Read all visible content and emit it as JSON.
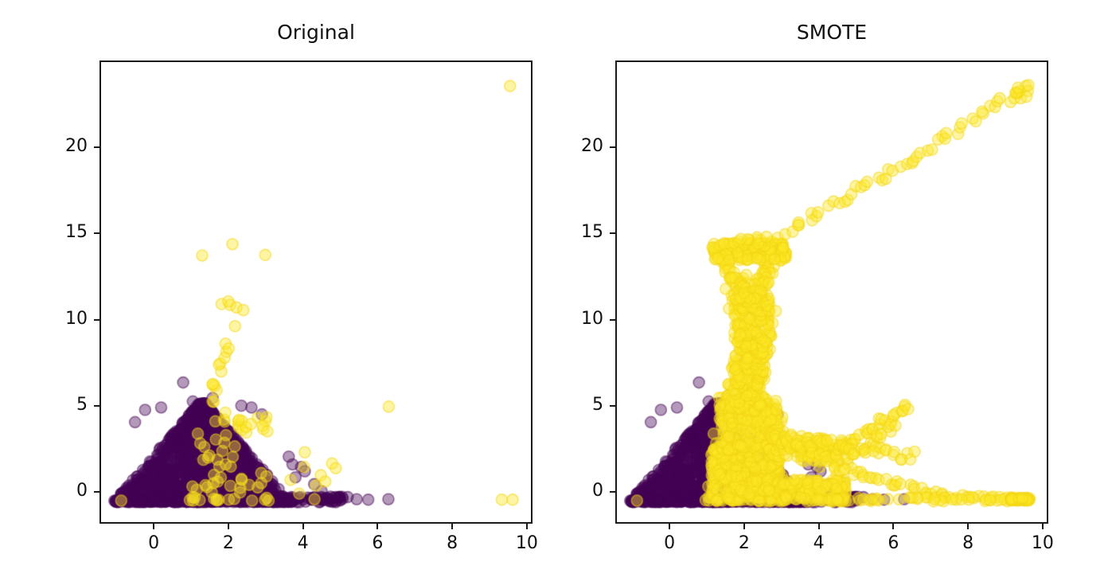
{
  "figure": {
    "background": "#ffffff"
  },
  "palette": {
    "majority_color": "#440154",
    "minority_color": "#fde725",
    "minority_stroke": "#f3d512",
    "majority_fill_alpha": 0.4,
    "majority_stroke_alpha": 0.5,
    "minority_fill_alpha": 0.42,
    "minority_stroke_alpha": 0.55,
    "axis_color": "#1a1a1a",
    "text_color": "#111111"
  },
  "chart_data": [
    {
      "type": "scatter",
      "title": "Original",
      "xlabel": "",
      "ylabel": "",
      "xlim": [
        -1.41,
        10.11
      ],
      "ylim": [
        -1.75,
        24.94
      ],
      "xticks": [
        0,
        2,
        4,
        6,
        8,
        10
      ],
      "yticks": [
        0,
        5,
        10,
        15,
        20
      ],
      "grid": false,
      "legend": "none",
      "marker": {
        "radius_px": 7
      },
      "series": [
        {
          "name": "majority-class-purple",
          "color": "#440154",
          "clusters": [
            {
              "kind": "triangle",
              "n": 1600,
              "cx": 1.3,
              "halfBase": 2.3,
              "yBase": -0.58,
              "yPeak": 5.15,
              "bias": 2.0,
              "seed": 11
            },
            {
              "kind": "box",
              "n": 60,
              "x": [
                3.35,
                5.1
              ],
              "y": [
                -0.6,
                -0.27
              ],
              "seed": 12
            },
            {
              "kind": "points",
              "pts": [
                [
                  -0.23,
                  4.76
                ],
                [
                  0.79,
                  6.35
                ],
                [
                  1.58,
                  5.45
                ],
                [
                  2.62,
                  4.9
                ],
                [
                  2.9,
                  4.5
                ],
                [
                  3.95,
                  1.45
                ],
                [
                  4.05,
                  1.2
                ],
                [
                  4.3,
                  0.45
                ],
                [
                  4.5,
                  0.05
                ],
                [
                  3.8,
                  0.85
                ],
                [
                  3.72,
                  1.6
                ],
                [
                  3.62,
                  2.05
                ],
                [
                  2.35,
                  5.0
                ],
                [
                  0.2,
                  4.9
                ],
                [
                  -0.5,
                  4.05
                ],
                [
                  1.05,
                  5.25
                ],
                [
                  4.67,
                  -0.42
                ],
                [
                  5.0,
                  -0.45
                ],
                [
                  5.2,
                  -0.3
                ],
                [
                  5.44,
                  -0.42
                ],
                [
                  5.75,
                  -0.45
                ],
                [
                  6.29,
                  -0.42
                ]
              ]
            }
          ]
        },
        {
          "name": "minority-class-yellow",
          "color": "#fde725",
          "clusters": [
            {
              "kind": "points",
              "pts": [
                [
                  -0.87,
                  -0.5
                ],
                [
                  1.82,
                  10.9
                ],
                [
                  2.05,
                  10.85
                ],
                [
                  2.22,
                  10.7
                ],
                [
                  2.4,
                  10.55
                ],
                [
                  2.0,
                  11.05
                ],
                [
                  2.18,
                  9.62
                ],
                [
                  1.3,
                  13.72
                ],
                [
                  2.11,
                  14.38
                ],
                [
                  2.99,
                  13.75
                ],
                [
                  3.67,
                  0.7
                ],
                [
                  4.05,
                  2.3
                ],
                [
                  4.03,
                  1.45
                ],
                [
                  4.78,
                  1.65
                ],
                [
                  4.88,
                  1.38
                ],
                [
                  4.48,
                  0.97
                ],
                [
                  4.35,
                  0.37
                ],
                [
                  4.31,
                  -0.42
                ],
                [
                  4.6,
                  0.6
                ],
                [
                  3.9,
                  -0.1
                ],
                [
                  6.3,
                  4.95
                ],
                [
                  9.33,
                  -0.45
                ],
                [
                  9.62,
                  -0.45
                ],
                [
                  9.55,
                  23.55
                ]
              ]
            },
            {
              "kind": "box",
              "n": 40,
              "x": [
                1.0,
                3.05
              ],
              "y": [
                -0.5,
                4.35
              ],
              "seed": 21
            },
            {
              "kind": "blob",
              "n": 7,
              "cx": 2.2,
              "cy": 3.85,
              "rx": 0.2,
              "ry": 0.4,
              "seed": 22
            },
            {
              "kind": "line",
              "n": 10,
              "from": [
                1.5,
                0.2
              ],
              "to": [
                1.85,
                4.6
              ],
              "jitter": 0.17,
              "seed": 23
            },
            {
              "kind": "box",
              "n": 12,
              "x": [
                0.9,
                3.1
              ],
              "y": [
                -0.52,
                -0.38
              ],
              "seed": 24
            },
            {
              "kind": "line",
              "n": 13,
              "from": [
                1.5,
                5.2
              ],
              "to": [
                1.95,
                8.7
              ],
              "jitter": 0.14,
              "seed": 25
            }
          ]
        }
      ]
    },
    {
      "type": "scatter",
      "title": "SMOTE",
      "xlabel": "",
      "ylabel": "",
      "xlim": [
        -1.41,
        10.11
      ],
      "ylim": [
        -1.75,
        24.94
      ],
      "xticks": [
        0,
        2,
        4,
        6,
        8,
        10
      ],
      "yticks": [
        0,
        5,
        10,
        15,
        20
      ],
      "grid": false,
      "legend": "none",
      "marker": {
        "radius_px": 7
      },
      "series": [
        {
          "name": "majority-class-purple",
          "color": "#440154",
          "clusters": [
            {
              "kind": "triangle",
              "n": 1600,
              "cx": 1.3,
              "halfBase": 2.3,
              "yBase": -0.58,
              "yPeak": 5.15,
              "bias": 2.0,
              "seed": 11
            },
            {
              "kind": "box",
              "n": 60,
              "x": [
                3.35,
                5.1
              ],
              "y": [
                -0.6,
                -0.27
              ],
              "seed": 12
            },
            {
              "kind": "points",
              "pts": [
                [
                  -0.23,
                  4.76
                ],
                [
                  0.79,
                  6.35
                ],
                [
                  1.58,
                  5.45
                ],
                [
                  2.62,
                  4.9
                ],
                [
                  2.9,
                  4.5
                ],
                [
                  3.95,
                  1.45
                ],
                [
                  4.05,
                  1.2
                ],
                [
                  4.3,
                  0.45
                ],
                [
                  4.5,
                  0.05
                ],
                [
                  3.8,
                  0.85
                ],
                [
                  3.72,
                  1.6
                ],
                [
                  3.62,
                  2.05
                ],
                [
                  2.35,
                  5.0
                ],
                [
                  0.2,
                  4.9
                ],
                [
                  -0.5,
                  4.05
                ],
                [
                  1.05,
                  5.25
                ],
                [
                  4.67,
                  -0.42
                ],
                [
                  5.0,
                  -0.45
                ],
                [
                  5.2,
                  -0.3
                ],
                [
                  5.44,
                  -0.42
                ],
                [
                  5.75,
                  -0.45
                ],
                [
                  6.29,
                  -0.42
                ]
              ]
            }
          ]
        },
        {
          "name": "minority-class-yellow-oversampled",
          "color": "#fde725",
          "clusters": [
            {
              "kind": "points",
              "pts": [
                [
                  -0.87,
                  -0.5
                ],
                [
                  1.82,
                  10.9
                ],
                [
                  2.05,
                  10.85
                ],
                [
                  2.22,
                  10.7
                ],
                [
                  2.4,
                  10.55
                ],
                [
                  2.0,
                  11.05
                ],
                [
                  2.18,
                  9.62
                ],
                [
                  1.3,
                  13.72
                ],
                [
                  2.11,
                  14.38
                ],
                [
                  2.99,
                  13.75
                ],
                [
                  3.67,
                  0.7
                ],
                [
                  4.05,
                  2.3
                ],
                [
                  4.03,
                  1.45
                ],
                [
                  4.78,
                  1.65
                ],
                [
                  4.88,
                  1.38
                ],
                [
                  4.48,
                  0.97
                ],
                [
                  4.35,
                  0.37
                ],
                [
                  4.31,
                  -0.42
                ],
                [
                  4.6,
                  0.6
                ],
                [
                  3.9,
                  -0.1
                ],
                [
                  6.3,
                  4.95
                ],
                [
                  9.33,
                  -0.45
                ],
                [
                  9.62,
                  -0.45
                ],
                [
                  9.55,
                  23.55
                ]
              ]
            },
            {
              "kind": "box",
              "n": 40,
              "x": [
                1.0,
                3.05
              ],
              "y": [
                -0.5,
                4.35
              ],
              "seed": 21
            },
            {
              "kind": "blob",
              "n": 7,
              "cx": 2.2,
              "cy": 3.85,
              "rx": 0.2,
              "ry": 0.4,
              "seed": 22
            },
            {
              "kind": "line",
              "n": 10,
              "from": [
                1.5,
                0.2
              ],
              "to": [
                1.85,
                4.6
              ],
              "jitter": 0.17,
              "seed": 23
            },
            {
              "kind": "box",
              "n": 12,
              "x": [
                0.9,
                3.1
              ],
              "y": [
                -0.52,
                -0.38
              ],
              "seed": 24
            },
            {
              "kind": "line",
              "n": 13,
              "from": [
                1.5,
                5.2
              ],
              "to": [
                1.95,
                8.7
              ],
              "jitter": 0.14,
              "seed": 25
            },
            {
              "kind": "box",
              "n": 380,
              "x": [
                1.12,
                2.95
              ],
              "y": [
                -0.55,
                2.6
              ],
              "seed": 31
            },
            {
              "kind": "box",
              "n": 260,
              "x": [
                1.3,
                2.9
              ],
              "y": [
                2.4,
                5.6
              ],
              "seed": 32
            },
            {
              "kind": "line",
              "n": 200,
              "from": [
                2.0,
                5.5
              ],
              "to": [
                2.35,
                9.2
              ],
              "jitter": 0.42,
              "seed": 33
            },
            {
              "kind": "line",
              "n": 160,
              "from": [
                2.25,
                9.0
              ],
              "to": [
                2.15,
                11.8
              ],
              "jitter": 0.5,
              "seed": 34
            },
            {
              "kind": "line",
              "n": 28,
              "from": [
                1.45,
                13.35
              ],
              "to": [
                2.05,
                11.4
              ],
              "jitter": 0.13,
              "seed": 35
            },
            {
              "kind": "line",
              "n": 28,
              "from": [
                2.75,
                13.35
              ],
              "to": [
                2.3,
                11.4
              ],
              "jitter": 0.13,
              "seed": 36
            },
            {
              "kind": "blob",
              "n": 20,
              "cx": 2.15,
              "cy": 11.15,
              "rx": 0.3,
              "ry": 0.35,
              "seed": 37
            },
            {
              "kind": "box",
              "n": 180,
              "x": [
                1.15,
                3.12
              ],
              "y": [
                13.42,
                14.45
              ],
              "seed": 38
            },
            {
              "kind": "blob",
              "n": 12,
              "cx": 2.2,
              "cy": 14.6,
              "rx": 0.3,
              "ry": 0.15,
              "seed": 39
            },
            {
              "kind": "points",
              "pts": [
                [
                  2.9,
                  14.75
                ],
                [
                  3.1,
                  14.95
                ],
                [
                  2.6,
                  14.8
                ],
                [
                  3.3,
                  15.1
                ]
              ]
            },
            {
              "kind": "line",
              "n": 50,
              "from": [
                3.35,
                15.2
              ],
              "to": [
                9.55,
                23.5
              ],
              "jitter": 0.14,
              "seed": 40
            },
            {
              "kind": "blob",
              "n": 5,
              "cx": 9.4,
              "cy": 23.2,
              "rx": 0.16,
              "ry": 0.2,
              "seed": 41
            },
            {
              "kind": "points",
              "pts": [
                [
                  9.62,
                  23.6
                ]
              ]
            },
            {
              "kind": "line",
              "n": 130,
              "from": [
                2.95,
                2.75
              ],
              "to": [
                4.55,
                2.3
              ],
              "jitter": 0.33,
              "seed": 42
            },
            {
              "kind": "line",
              "n": 30,
              "from": [
                4.5,
                2.3
              ],
              "to": [
                6.3,
                4.95
              ],
              "jitter": 0.1,
              "seed": 43
            },
            {
              "kind": "line",
              "n": 16,
              "from": [
                4.8,
                2.05
              ],
              "to": [
                6.1,
                3.9
              ],
              "jitter": 0.08,
              "seed": 44
            },
            {
              "kind": "line",
              "n": 22,
              "from": [
                4.6,
                2.55
              ],
              "to": [
                6.55,
                2.1
              ],
              "jitter": 0.15,
              "seed": 45
            },
            {
              "kind": "box",
              "n": 130,
              "x": [
                2.9,
                4.75
              ],
              "y": [
                -0.55,
                0.7
              ],
              "seed": 46
            },
            {
              "kind": "line",
              "n": 30,
              "from": [
                4.35,
                1.45
              ],
              "to": [
                7.3,
                -0.2
              ],
              "jitter": 0.1,
              "seed": 47
            },
            {
              "kind": "line",
              "n": 18,
              "from": [
                7.3,
                -0.3
              ],
              "to": [
                9.1,
                -0.45
              ],
              "jitter": 0.07,
              "seed": 48
            },
            {
              "kind": "box",
              "n": 50,
              "x": [
                3.1,
                9.1
              ],
              "y": [
                -0.55,
                -0.3
              ],
              "seed": 49
            },
            {
              "kind": "box",
              "n": 60,
              "x": [
                9.15,
                9.65
              ],
              "y": [
                -0.5,
                -0.35
              ],
              "seed": 50
            }
          ]
        }
      ]
    }
  ]
}
